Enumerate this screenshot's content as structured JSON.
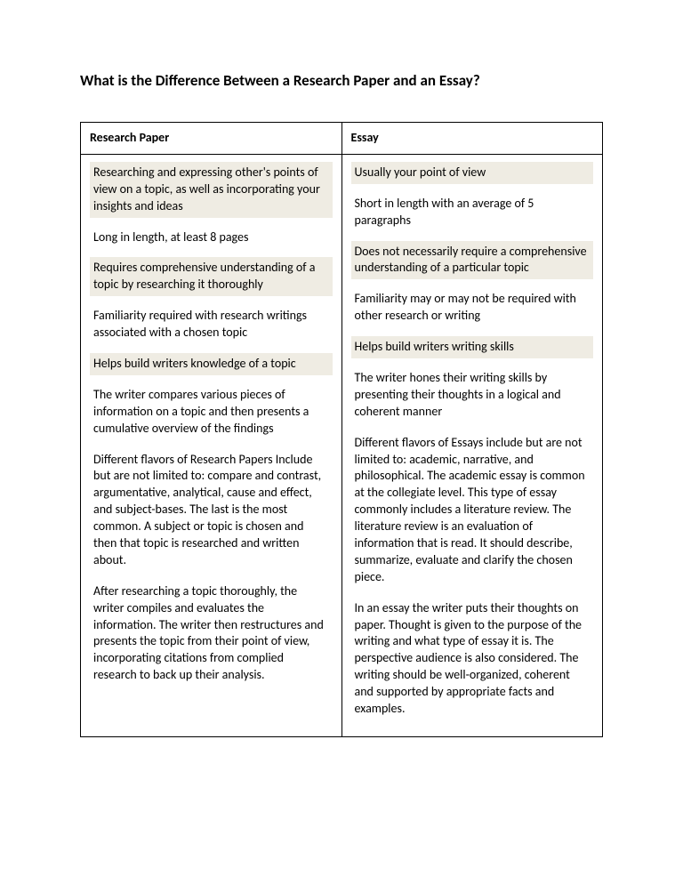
{
  "title": "What is the Difference Between a Research Paper and an Essay?",
  "headers": {
    "left": "Research Paper",
    "right": "Essay"
  },
  "left": {
    "p1": "Researching and expressing other's points of view on a topic, as well as incorporating your insights and ideas",
    "p2": "Long in length, at least 8 pages",
    "p3": "Requires comprehensive understanding of a topic by researching it thoroughly",
    "p4": "Familiarity required with research writings associated with a chosen topic",
    "p5": "Helps build writers knowledge of a topic",
    "p6": " The writer compares various pieces of information on a topic and then presents a cumulative overview of the findings",
    "p7": "Different flavors of Research Papers Include but are not limited to:  compare and contrast, argumentative, analytical, cause and effect, and subject-bases.  The last is the most common.  A subject or topic is chosen and then that topic is researched and written about.",
    "p8": "After researching a topic thoroughly, the writer compiles and evaluates the information. The writer then restructures and presents the topic from their point of view, incorporating citations from complied research to back up their analysis."
  },
  "right": {
    "p1": "Usually your point of view",
    "p2": "Short in length with an average of 5 paragraphs",
    "p3": "Does not necessarily require a comprehensive understanding of a particular topic",
    "p4": "Familiarity may or may not be required with other research or writing",
    "p5": "Helps build writers writing skills",
    "p6": "The writer hones their writing skills by presenting their thoughts in a logical and coherent manner",
    "p7": "Different flavors of Essays include but are not limited to:  academic, narrative, and philosophical. The academic essay is common at the collegiate level.  This type of essay commonly includes a literature review.  The literature review is an evaluation of information that is read.  It should describe, summarize, evaluate and clarify the chosen piece.",
    "p8": "In an essay the writer puts their thoughts on paper.  Thought is given to the purpose of the writing and what type of essay it is.  The perspective audience is also considered.  The writing should be well-organized, coherent and supported by appropriate facts and examples."
  },
  "colors": {
    "shaded_bg": "#efece3",
    "border": "#000000",
    "text": "#000000",
    "page_bg": "#ffffff"
  }
}
